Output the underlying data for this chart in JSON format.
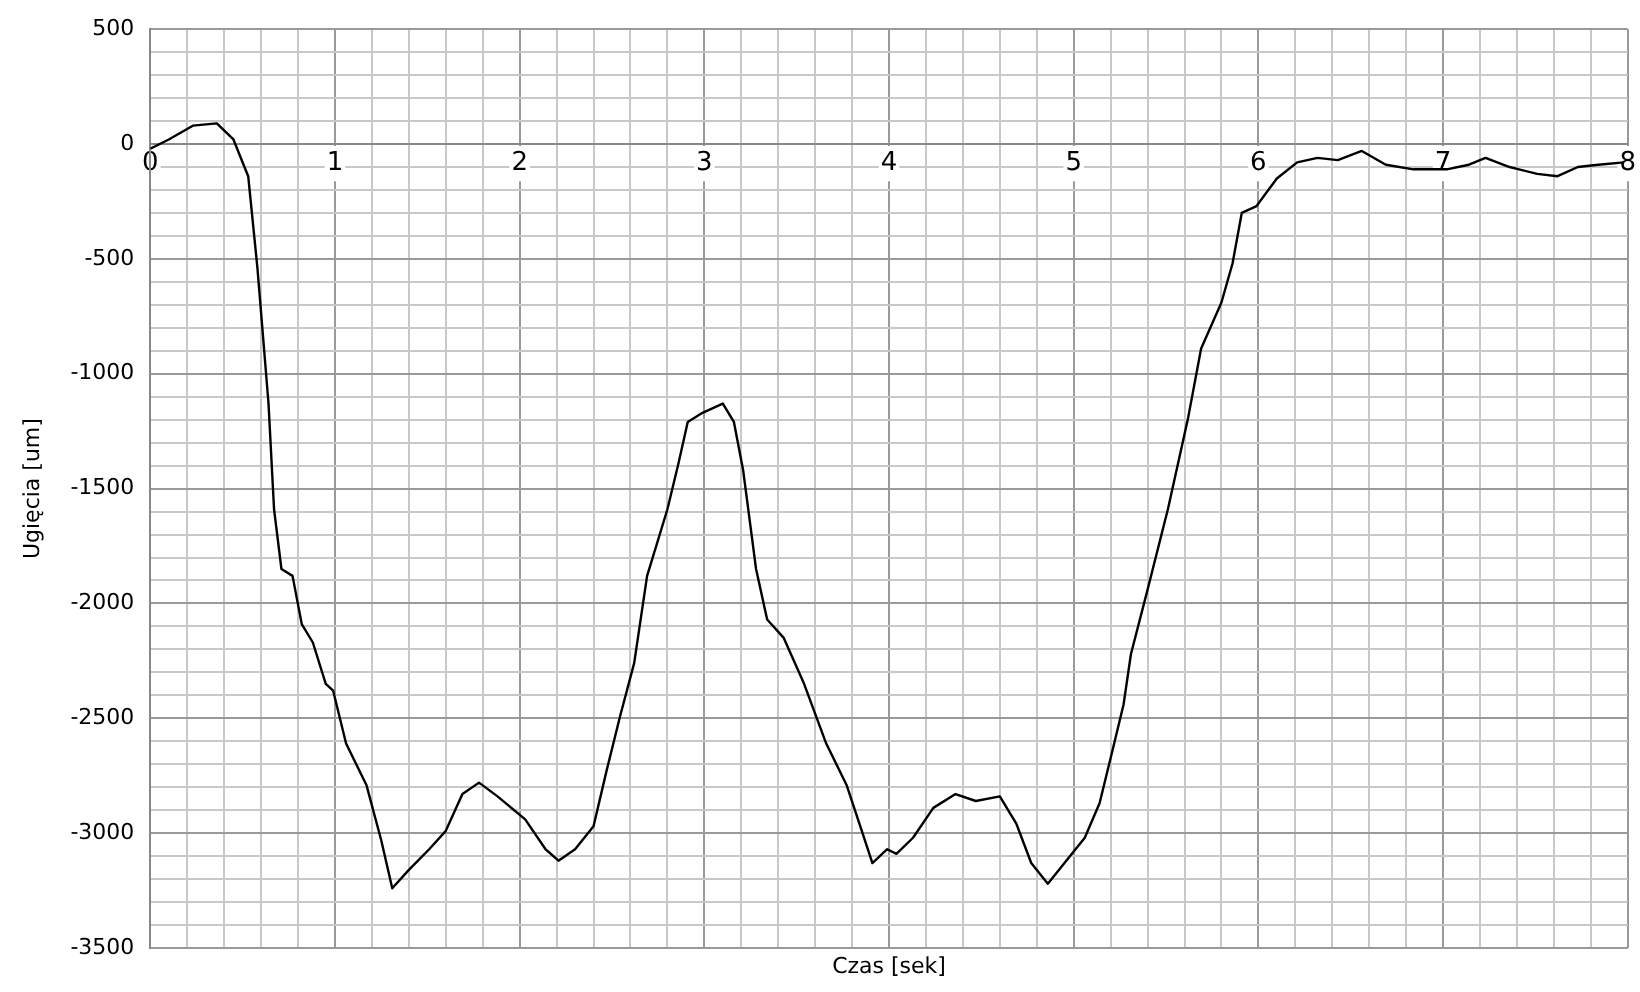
{
  "chart_data": {
    "type": "line",
    "xlabel": "Czas [sek]",
    "ylabel": "Ugięcia [um]",
    "x": [
      0,
      0.1,
      0.23,
      0.36,
      0.45,
      0.53,
      0.58,
      0.64,
      0.67,
      0.71,
      0.77,
      0.82,
      0.88,
      0.95,
      0.99,
      1.06,
      1.17,
      1.25,
      1.31,
      1.4,
      1.51,
      1.6,
      1.69,
      1.78,
      1.88,
      2.03,
      2.14,
      2.21,
      2.3,
      2.4,
      2.47,
      2.544,
      2.62,
      2.69,
      2.8,
      2.86,
      2.91,
      2.99,
      3.1,
      3.16,
      3.21,
      3.28,
      3.34,
      3.43,
      3.54,
      3.66,
      3.77,
      3.84,
      3.91,
      3.99,
      4.04,
      4.13,
      4.24,
      4.36,
      4.47,
      4.6,
      4.69,
      4.77,
      4.86,
      4.95,
      5.06,
      5.14,
      5.21,
      5.27,
      5.31,
      5.4,
      5.51,
      5.62,
      5.69,
      5.8,
      5.86,
      5.91,
      5.99,
      6.1,
      6.21,
      6.32,
      6.43,
      6.56,
      6.69,
      6.84,
      7.02,
      7.14,
      7.23,
      7.36,
      7.51,
      7.62,
      7.73,
      7.84,
      7.98
    ],
    "series": [
      {
        "color": "#000000",
        "values": [
          -20,
          20,
          80,
          90,
          20,
          -140,
          -540,
          -1130,
          -1590,
          -1850,
          -1880,
          -2090,
          -2170,
          -2350,
          -2380,
          -2610,
          -2790,
          -3030,
          -3240,
          -3160,
          -3070,
          -2990,
          -2830,
          -2780,
          -2840,
          -2940,
          -3070,
          -3120,
          -3070,
          -2970,
          -2730,
          -2490,
          -2260,
          -1880,
          -1590,
          -1390,
          -1210,
          -1170,
          -1130,
          -1210,
          -1420,
          -1850,
          -2070,
          -2150,
          -2350,
          -2610,
          -2790,
          -2960,
          -3130,
          -3070,
          -3090,
          -3020,
          -2890,
          -2830,
          -2860,
          -2840,
          -2960,
          -3130,
          -3220,
          -3130,
          -3020,
          -2870,
          -2640,
          -2440,
          -2220,
          -1940,
          -1590,
          -1190,
          -890,
          -690,
          -520,
          -300,
          -270,
          -150,
          -80,
          -60,
          -70,
          -30,
          -90,
          -110,
          -110,
          -90,
          -60,
          -100,
          -130,
          -140,
          -100,
          -90,
          -80
        ]
      }
    ],
    "xlim": [
      0,
      8
    ],
    "ylim": [
      -3500,
      500
    ],
    "xticks": [
      0,
      {
        "value": 0.2,
        "label": null
      },
      {
        "value": 0.4,
        "label": null
      },
      {
        "value": 0.6,
        "label": null
      },
      {
        "value": 0.8,
        "label": null
      },
      1,
      {
        "value": 1.2,
        "label": null
      },
      {
        "value": 1.4,
        "label": null
      },
      {
        "value": 1.6,
        "label": null
      },
      {
        "value": 1.8,
        "label": null
      },
      2,
      {
        "value": 2.2,
        "label": null
      },
      {
        "value": 2.4,
        "label": null
      },
      {
        "value": 2.6,
        "label": null
      },
      {
        "value": 2.8,
        "label": null
      },
      3,
      {
        "value": 3.2,
        "label": null
      },
      {
        "value": 3.4,
        "label": null
      },
      {
        "value": 3.6,
        "label": null
      },
      {
        "value": 3.8,
        "label": null
      },
      4,
      {
        "value": 4.2,
        "label": null
      },
      {
        "value": 4.4,
        "label": null
      },
      {
        "value": 4.6,
        "label": null
      },
      {
        "value": 4.8,
        "label": null
      },
      5,
      {
        "value": 5.2,
        "label": null
      },
      {
        "value": 5.4,
        "label": null
      },
      {
        "value": 5.6,
        "label": null
      },
      {
        "value": 5.8,
        "label": null
      },
      6,
      {
        "value": 6.2,
        "label": null
      },
      {
        "value": 6.4,
        "label": null
      },
      {
        "value": 6.6,
        "label": null
      },
      {
        "value": 6.8,
        "label": null
      },
      7,
      {
        "value": 7.2,
        "label": null
      },
      {
        "value": 7.4,
        "label": null
      },
      {
        "value": 7.6,
        "label": null
      },
      {
        "value": 7.8,
        "label": null
      },
      8
    ],
    "yticks": [
      -3500,
      {
        "value": -3400,
        "label": null
      },
      {
        "value": -3300,
        "label": null
      },
      {
        "value": -3200,
        "label": null
      },
      {
        "value": -3100,
        "label": null
      },
      -3000,
      {
        "value": -2900,
        "label": null
      },
      {
        "value": -2800,
        "label": null
      },
      {
        "value": -2700,
        "label": null
      },
      {
        "value": -2600,
        "label": null
      },
      -2500,
      {
        "value": -2400,
        "label": null
      },
      {
        "value": -2300,
        "label": null
      },
      {
        "value": -2200,
        "label": null
      },
      {
        "value": -2100,
        "label": null
      },
      -2000,
      {
        "value": -1900,
        "label": null
      },
      {
        "value": -1800,
        "label": null
      },
      {
        "value": -1700,
        "label": null
      },
      {
        "value": -1600,
        "label": null
      },
      -1500,
      {
        "value": -1400,
        "label": null
      },
      {
        "value": -1300,
        "label": null
      },
      {
        "value": -1200,
        "label": null
      },
      {
        "value": -1100,
        "label": null
      },
      -1000,
      {
        "value": -900,
        "label": null
      },
      {
        "value": -800,
        "label": null
      },
      {
        "value": -700,
        "label": null
      },
      {
        "value": -600,
        "label": null
      },
      -500,
      {
        "value": -400,
        "label": null
      },
      {
        "value": -300,
        "label": null
      },
      {
        "value": -200,
        "label": null
      },
      {
        "value": -100,
        "label": null
      },
      0,
      {
        "value": 100,
        "label": null
      },
      {
        "value": 200,
        "label": null
      },
      {
        "value": 300,
        "label": null
      },
      {
        "value": 400,
        "label": null
      },
      500
    ],
    "grid": true,
    "legend": false,
    "marker": "none",
    "line_style": "solid"
  }
}
